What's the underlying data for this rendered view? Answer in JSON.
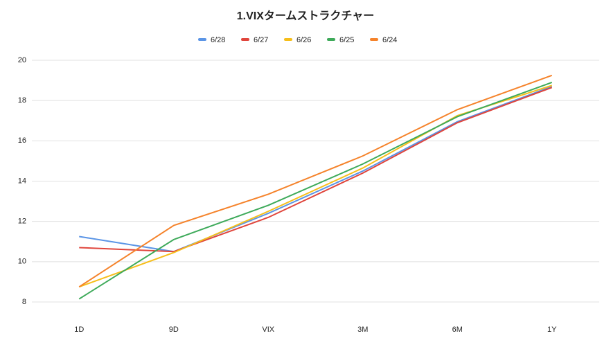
{
  "chart_data": {
    "type": "line",
    "title": "1.VIXタームストラクチャー",
    "categories": [
      "1D",
      "9D",
      "VIX",
      "3M",
      "6M",
      "1Y"
    ],
    "series": [
      {
        "name": "6/28",
        "color": "#5b95e6",
        "values": [
          11.25,
          10.5,
          12.4,
          14.5,
          16.95,
          18.7
        ]
      },
      {
        "name": "6/27",
        "color": "#e0453c",
        "values": [
          10.7,
          10.5,
          12.2,
          14.4,
          16.9,
          18.65
        ]
      },
      {
        "name": "6/26",
        "color": "#f6be1a",
        "values": [
          8.75,
          10.45,
          12.5,
          14.65,
          17.25,
          18.75
        ]
      },
      {
        "name": "6/25",
        "color": "#3eaa5a",
        "values": [
          8.15,
          11.1,
          12.8,
          14.85,
          17.2,
          18.9
        ]
      },
      {
        "name": "6/24",
        "color": "#f5832b",
        "values": [
          8.75,
          11.8,
          13.35,
          15.25,
          17.55,
          19.25
        ]
      }
    ],
    "ylim": [
      8,
      20
    ],
    "yticks": [
      8,
      10,
      12,
      14,
      16,
      18,
      20
    ],
    "grid": true
  }
}
